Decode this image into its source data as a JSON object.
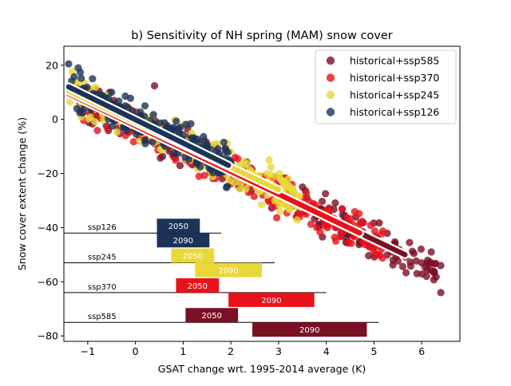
{
  "chart_data": {
    "type": "scatter",
    "title": "b) Sensitivity of NH spring (MAM) snow cover",
    "xlabel": "GSAT change wrt. 1995-2014 average (K)",
    "ylabel": "Snow cover extent change (%)",
    "xlim": [
      -1.5,
      6.8
    ],
    "ylim": [
      -82,
      27
    ],
    "xticks": [
      -1,
      0,
      1,
      2,
      3,
      4,
      5,
      6
    ],
    "yticks": [
      20,
      0,
      -20,
      -40,
      -60,
      -80
    ],
    "grid": false,
    "legend_position": "top-right",
    "series": [
      {
        "name": "historical+ssp585",
        "color": "#7b0f24",
        "x_range": [
          -1.4,
          6.4
        ],
        "fit": {
          "x": [
            -1.4,
            5.65
          ],
          "y": [
            9.5,
            -50
          ]
        },
        "sample_points": [
          [
            0.4,
            12.4
          ],
          [
            3.5,
            -25
          ],
          [
            4.2,
            -40
          ],
          [
            4.9,
            -47
          ],
          [
            5.4,
            -52
          ],
          [
            5.9,
            -57
          ],
          [
            6.0,
            -53
          ],
          [
            6.1,
            -58
          ],
          [
            6.4,
            -54
          ],
          [
            6.4,
            -64
          ]
        ]
      },
      {
        "name": "historical+ssp370",
        "color": "#e8121b",
        "x_range": [
          -1.4,
          5.2
        ],
        "fit": {
          "x": [
            -1.4,
            4.7
          ],
          "y": [
            9.5,
            -42
          ]
        },
        "sample_points": [
          [
            1.5,
            -15
          ],
          [
            2.5,
            -25
          ],
          [
            3.2,
            -32
          ],
          [
            3.8,
            -40
          ],
          [
            4.2,
            -45
          ],
          [
            4.6,
            -42
          ]
        ]
      },
      {
        "name": "historical+ssp245",
        "color": "#e8d83a",
        "x_range": [
          -1.4,
          3.5
        ],
        "fit": {
          "x": [
            -1.4,
            3.0
          ],
          "y": [
            10.5,
            -26
          ]
        },
        "sample_points": [
          [
            0.5,
            -5
          ],
          [
            1.0,
            -2
          ],
          [
            1.5,
            -10
          ],
          [
            2.0,
            -12
          ],
          [
            2.8,
            -15
          ],
          [
            3.2,
            -22
          ]
        ]
      },
      {
        "name": "historical+ssp126",
        "color": "#1b3356",
        "x_range": [
          -1.4,
          2.0
        ],
        "fit": {
          "x": [
            -1.4,
            1.95
          ],
          "y": [
            12,
            -17
          ]
        },
        "sample_points": [
          [
            -1.4,
            20.5
          ],
          [
            -1.2,
            19
          ],
          [
            -0.9,
            15
          ],
          [
            -0.5,
            10
          ],
          [
            0.2,
            5
          ],
          [
            0.8,
            -3
          ],
          [
            1.5,
            -12
          ],
          [
            1.95,
            -17
          ]
        ]
      }
    ],
    "range_bars": [
      {
        "scenario": "ssp126",
        "color": "#1b3356",
        "y": -42,
        "line": [
          -1.5,
          1.8
        ],
        "periods": [
          {
            "label": "2050",
            "range": [
              0.45,
              1.35
            ]
          },
          {
            "label": "2090",
            "range": [
              0.45,
              1.55
            ]
          }
        ]
      },
      {
        "scenario": "ssp245",
        "color": "#e8d83a",
        "y": -53,
        "line": [
          -1.5,
          2.92
        ],
        "periods": [
          {
            "label": "2050",
            "range": [
              0.75,
              1.65
            ]
          },
          {
            "label": "2090",
            "range": [
              1.25,
              2.65
            ]
          }
        ]
      },
      {
        "scenario": "ssp370",
        "color": "#e8121b",
        "y": -64,
        "line": [
          -1.5,
          4.0
        ],
        "periods": [
          {
            "label": "2050",
            "range": [
              0.85,
              1.75
            ]
          },
          {
            "label": "2090",
            "range": [
              1.95,
              3.75
            ]
          }
        ]
      },
      {
        "scenario": "ssp585",
        "color": "#7b0f24",
        "y": -75,
        "line": [
          -1.5,
          5.1
        ],
        "periods": [
          {
            "label": "2050",
            "range": [
              1.05,
              2.15
            ]
          },
          {
            "label": "2090",
            "range": [
              2.45,
              4.85
            ]
          }
        ]
      }
    ]
  }
}
